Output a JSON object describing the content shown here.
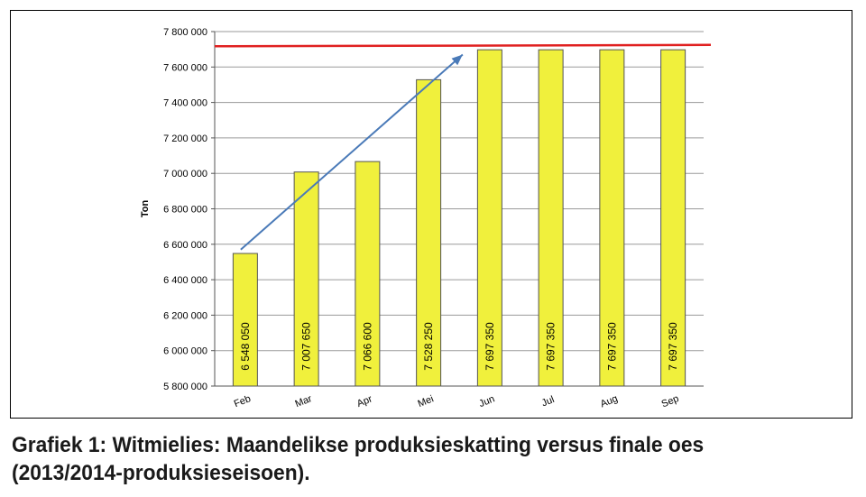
{
  "caption": {
    "line1": "Grafiek 1: Witmielies: Maandelikse produksieskatting versus finale oes",
    "line2": "(2013/2014-produksieseisoen)."
  },
  "colors": {
    "bar_fill": "#f0f03c",
    "bar_stroke": "#555555",
    "target_line": "#e02020",
    "trend_arrow": "#4a7ab8",
    "grid": "#9a9a9a"
  },
  "chart_data": {
    "type": "bar",
    "title": "",
    "xlabel": "",
    "ylabel": "Ton",
    "categories": [
      "Feb",
      "Mar",
      "Apr",
      "Mei",
      "Jun",
      "Jul",
      "Aug",
      "Sep"
    ],
    "values": [
      6548050,
      7007650,
      7066600,
      7528250,
      7697350,
      7697350,
      7697350,
      7697350
    ],
    "data_labels": [
      "6 548 050",
      "7 007 650",
      "7 066 600",
      "7 528 250",
      "7 697 350",
      "7 697 350",
      "7 697 350",
      "7 697 350"
    ],
    "ylim": [
      5800000,
      7800000
    ],
    "yticks": [
      5800000,
      6000000,
      6200000,
      6400000,
      6600000,
      6800000,
      7000000,
      7200000,
      7400000,
      7600000,
      7800000
    ],
    "ytick_labels": [
      "5 800 000",
      "6 000 000",
      "6 200 000",
      "6 400 000",
      "6 600 000",
      "6 800 000",
      "7 000 000",
      "7 200 000",
      "7 400 000",
      "7 600 000",
      "7 800 000"
    ],
    "grid": true,
    "legend": "none",
    "reference_line": {
      "value": 7717000,
      "color": "#e02020"
    },
    "trend_arrow": {
      "from": {
        "category": "Feb",
        "value": 6570000
      },
      "to": {
        "category": "Jun",
        "value": 7670000
      }
    }
  }
}
